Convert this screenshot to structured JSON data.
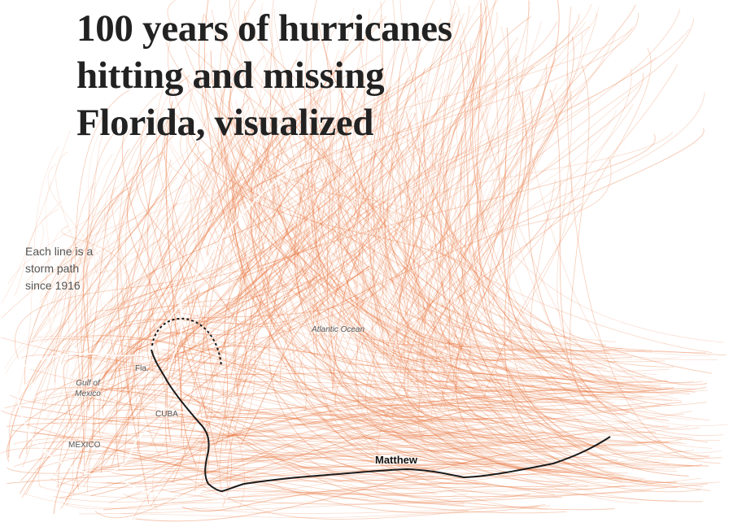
{
  "title_lines": [
    "100 years of hurricanes",
    "hitting and missing",
    "Florida, visualized"
  ],
  "note_lines": [
    "Each line is a",
    "storm path",
    "since 1916"
  ],
  "map_labels": {
    "atlantic": "Atlantic Ocean",
    "gulf_line1": "Gulf of",
    "gulf_line2": "Mexico",
    "fla": "Fla.",
    "cuba": "CUBA",
    "mexico": "MEXICO"
  },
  "highlight": {
    "storm_name": "Matthew"
  },
  "colors": {
    "storm_track": "#e8733a",
    "highlight_track": "#1a1a1a",
    "title_text": "#222222",
    "note_text": "#555555"
  }
}
